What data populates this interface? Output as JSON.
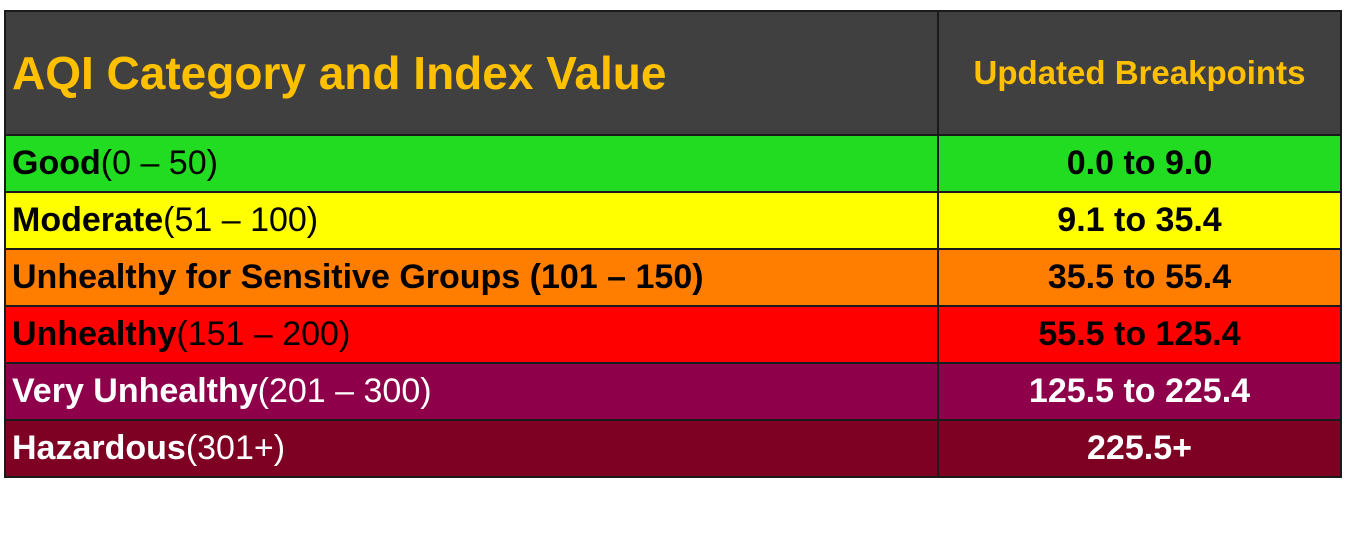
{
  "header": {
    "category_col": "AQI Category and Index Value",
    "breakpoints_col": "Updated Breakpoints"
  },
  "rows": [
    {
      "category": "Good",
      "range": "(0 – 50)",
      "breakpoints": "0.0 to 9.0",
      "bg": "#21dc21",
      "fg": "#000000",
      "range_bold": false
    },
    {
      "category": "Moderate",
      "range": "(51 – 100)",
      "breakpoints": "9.1 to 35.4",
      "bg": "#ffff00",
      "fg": "#000000",
      "range_bold": false
    },
    {
      "category": "Unhealthy for Sensitive Groups",
      "range": " (101 – 150)",
      "breakpoints": "35.5 to 55.4",
      "bg": "#ff7e00",
      "fg": "#000000",
      "range_bold": true
    },
    {
      "category": "Unhealthy",
      "range": "(151 – 200)",
      "breakpoints": "55.5 to 125.4",
      "bg": "#ff0000",
      "fg": "#000000",
      "range_bold": false
    },
    {
      "category": "Very Unhealthy",
      "range": "(201 – 300)",
      "breakpoints": "125.5 to 225.4",
      "bg": "#8f004a",
      "fg": "#ffffff",
      "range_bold": false
    },
    {
      "category": "Hazardous",
      "range": "(301+)",
      "breakpoints": "225.5+",
      "bg": "#7e0023",
      "fg": "#ffffff",
      "range_bold": false
    }
  ]
}
